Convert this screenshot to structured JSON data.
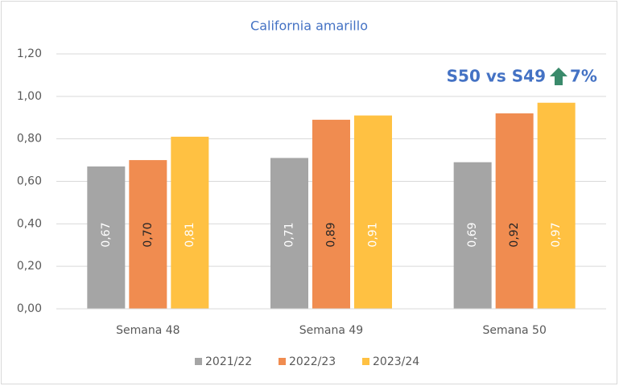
{
  "chart_data": {
    "type": "bar",
    "title": "California amarillo",
    "annotations": [
      "S50 vs S49",
      "7%"
    ],
    "categories": [
      "Semana 48",
      "Semana 49",
      "Semana 50"
    ],
    "series": [
      {
        "name": "2021/22",
        "color": "#a5a5a5",
        "values": [
          0.67,
          0.71,
          0.69
        ],
        "value_labels": [
          "0,67",
          "0,71",
          "0,69"
        ]
      },
      {
        "name": "2022/23",
        "color": "#f08c50",
        "values": [
          0.7,
          0.89,
          0.92
        ],
        "value_labels": [
          "0,70",
          "0,89",
          "0,92"
        ]
      },
      {
        "name": "2023/24",
        "color": "#ffc142",
        "values": [
          0.81,
          0.91,
          0.97
        ],
        "value_labels": [
          "0,81",
          "0,91",
          "0,97"
        ]
      }
    ],
    "ylim": [
      0,
      1.2
    ],
    "yticks": [
      {
        "value": 0,
        "label": "0,00"
      },
      {
        "value": 0.2,
        "label": "0,20"
      },
      {
        "value": 0.4,
        "label": "0,40"
      },
      {
        "value": 0.6,
        "label": "0,60"
      },
      {
        "value": 0.8,
        "label": "0,80"
      },
      {
        "value": 1.0,
        "label": "1,00"
      },
      {
        "value": 1.2,
        "label": "1,20"
      }
    ],
    "grid": true,
    "legend": "bottom"
  }
}
